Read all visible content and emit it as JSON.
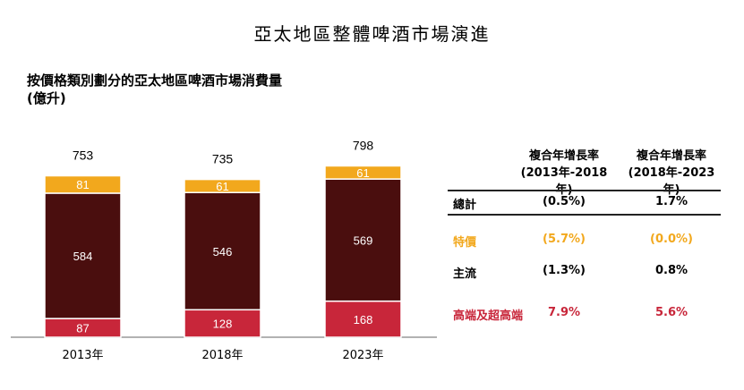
{
  "title": "亞太地區整體啤酒市場演進",
  "subtitle": {
    "line1": "按價格類別劃分的亞太地區啤酒市場消費量",
    "line2": "(億升)"
  },
  "colors": {
    "premium": "#f2a81d",
    "mainstream": "#4a0e0e",
    "high_end": "#c8263a",
    "separator": "#ffffff"
  },
  "chart_data": {
    "type": "bar",
    "stacked": true,
    "categories": [
      "2013年",
      "2018年",
      "2023年"
    ],
    "series": [
      {
        "name": "高端及超高端",
        "values": [
          87,
          128,
          168
        ]
      },
      {
        "name": "主流",
        "values": [
          584,
          546,
          569
        ]
      },
      {
        "name": "特價",
        "values": [
          81,
          61,
          61
        ]
      }
    ],
    "totals": [
      753,
      735,
      798
    ],
    "title": "按價格類別劃分的亞太地區啤酒市場消費量",
    "ylabel": "(億升)",
    "ylim": [
      0,
      800
    ],
    "legend": "table on right"
  },
  "table": {
    "headers": [
      {
        "line1": "複合年增長率",
        "line2": "(2013年-2018年)"
      },
      {
        "line1": "複合年增長率",
        "line2": "(2018年-2023年)"
      }
    ],
    "rows": [
      {
        "label": "總計",
        "c1": "(0.5%)",
        "c2": "1.7%",
        "color": "#000000"
      },
      {
        "label": "特價",
        "c1": "(5.7%)",
        "c2": "(0.0%)",
        "color": "#f2a81d"
      },
      {
        "label": "主流",
        "c1": "(1.3%)",
        "c2": "0.8%",
        "color": "#000000"
      },
      {
        "label": "高端及超高端",
        "c1": "7.9%",
        "c2": "5.6%",
        "color": "#c8263a"
      }
    ]
  }
}
